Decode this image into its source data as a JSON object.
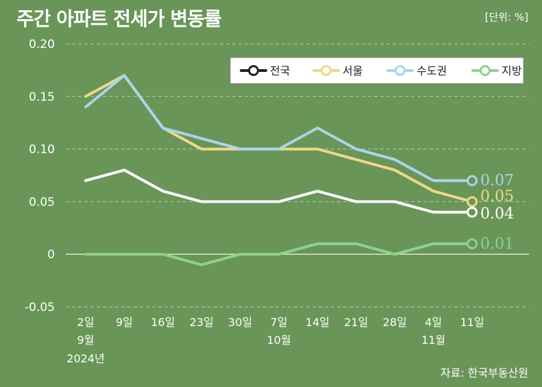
{
  "header": {
    "title": "주간 아파트 전세가 변동률",
    "unit": "[단위: %]"
  },
  "footer": {
    "source": "자료: 한국부동산원"
  },
  "chart_data": {
    "type": "line",
    "title": "주간 아파트 전세가 변동률",
    "ylim": [
      -0.05,
      0.2
    ],
    "yticks": [
      "0.20",
      "0.15",
      "0.10",
      "0.05",
      "0",
      "-0.05"
    ],
    "ytick_values": [
      0.2,
      0.15,
      0.1,
      0.05,
      0,
      -0.05
    ],
    "categories": [
      "2일",
      "9일",
      "16일",
      "23일",
      "30일",
      "7일",
      "14일",
      "21일",
      "28일",
      "4일",
      "11일"
    ],
    "x_sublabels": [
      {
        "index": 0,
        "lines": [
          "9월",
          "2024년"
        ]
      },
      {
        "index": 5,
        "lines": [
          "10월"
        ]
      },
      {
        "index": 9,
        "lines": [
          "11월"
        ]
      }
    ],
    "grid": true,
    "legend_position": "top-right",
    "series": [
      {
        "name": "전국",
        "color": "#ffffff",
        "values": [
          0.07,
          0.08,
          0.06,
          0.05,
          0.05,
          0.05,
          0.06,
          0.05,
          0.05,
          0.04,
          0.04
        ],
        "end_label": "0.04"
      },
      {
        "name": "서울",
        "color": "#ecd98a",
        "values": [
          0.15,
          0.17,
          0.12,
          0.1,
          0.1,
          0.1,
          0.1,
          0.09,
          0.08,
          0.06,
          0.05
        ],
        "end_label": "0.05"
      },
      {
        "name": "수도권",
        "color": "#a9d5ea",
        "values": [
          0.14,
          0.17,
          0.12,
          0.11,
          0.1,
          0.1,
          0.12,
          0.1,
          0.09,
          0.07,
          0.07
        ],
        "end_label": "0.07"
      },
      {
        "name": "지방",
        "color": "#8fd18e",
        "values": [
          0.0,
          0.0,
          0.0,
          -0.01,
          0.0,
          0.0,
          0.01,
          0.01,
          0.0,
          0.01,
          0.01
        ],
        "end_label": "0.01"
      }
    ]
  }
}
